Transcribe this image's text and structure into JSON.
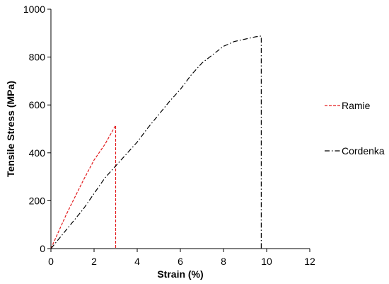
{
  "chart_data": {
    "type": "line",
    "title": "",
    "xlabel": "Strain (%)",
    "ylabel": "Tensile Stress (MPa)",
    "xlim": [
      0,
      12
    ],
    "ylim": [
      0,
      1000
    ],
    "xticks": [
      0,
      2,
      4,
      6,
      8,
      10,
      12
    ],
    "yticks": [
      0,
      200,
      400,
      600,
      800,
      1000
    ],
    "grid": false,
    "legend_position": "right",
    "series": [
      {
        "name": "Ramie",
        "color": "#e31a1c",
        "line_style": "dashed",
        "x": [
          0,
          0.3,
          0.7,
          1.0,
          1.5,
          2.0,
          2.5,
          3.0,
          3.0
        ],
        "y": [
          0,
          60,
          140,
          195,
          285,
          370,
          435,
          515,
          0
        ]
      },
      {
        "name": "Cordenka",
        "color": "#000000",
        "line_style": "dash-dot",
        "x": [
          0,
          0.5,
          1.0,
          1.5,
          2.0,
          2.5,
          3.0,
          3.5,
          4.0,
          4.5,
          5.0,
          5.5,
          6.0,
          6.5,
          7.0,
          7.5,
          8.0,
          8.5,
          9.0,
          9.5,
          9.75,
          9.75
        ],
        "y": [
          0,
          55,
          110,
          165,
          230,
          295,
          345,
          395,
          445,
          505,
          560,
          615,
          665,
          725,
          775,
          810,
          845,
          865,
          875,
          885,
          888,
          0
        ]
      }
    ]
  }
}
